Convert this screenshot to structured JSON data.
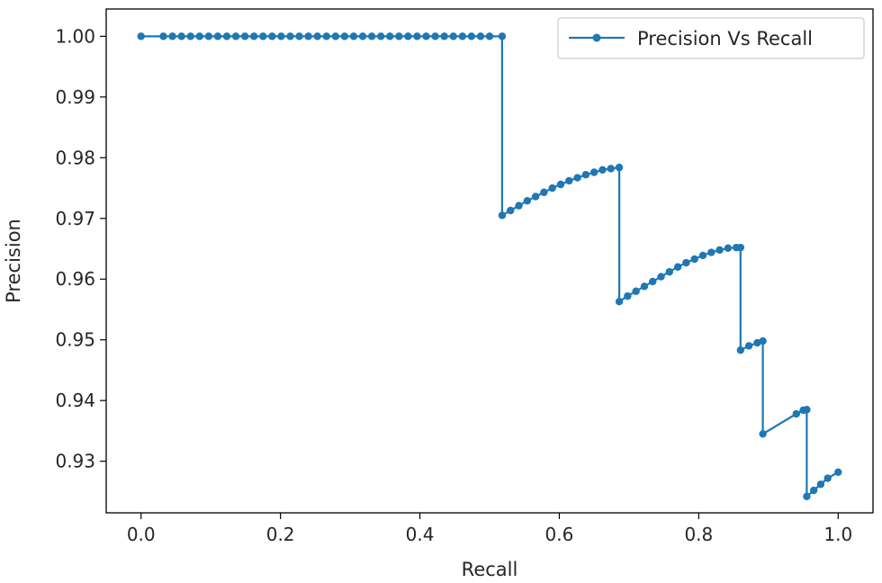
{
  "chart_data": {
    "type": "line",
    "title": "",
    "xlabel": "Recall",
    "ylabel": "Precision",
    "xlim": [
      -0.05,
      1.05
    ],
    "ylim": [
      0.9215,
      1.0045
    ],
    "xticks": [
      0.0,
      0.2,
      0.4,
      0.6,
      0.8,
      1.0
    ],
    "xtick_labels": [
      "0.0",
      "0.2",
      "0.4",
      "0.6",
      "0.8",
      "1.0"
    ],
    "yticks": [
      0.93,
      0.94,
      0.95,
      0.96,
      0.97,
      0.98,
      0.99,
      1.0
    ],
    "ytick_labels": [
      "0.93",
      "0.94",
      "0.95",
      "0.96",
      "0.97",
      "0.98",
      "0.99",
      "1.00"
    ],
    "grid": false,
    "legend_position": "top-right",
    "series": [
      {
        "name": "Precision Vs Recall",
        "color": "#1f77b4",
        "marker": "dot",
        "x": [
          0.0,
          0.032,
          0.045,
          0.058,
          0.071,
          0.084,
          0.097,
          0.11,
          0.123,
          0.136,
          0.149,
          0.162,
          0.175,
          0.188,
          0.201,
          0.214,
          0.227,
          0.24,
          0.253,
          0.266,
          0.279,
          0.292,
          0.305,
          0.318,
          0.331,
          0.344,
          0.357,
          0.37,
          0.383,
          0.396,
          0.409,
          0.422,
          0.435,
          0.448,
          0.461,
          0.474,
          0.487,
          0.5,
          0.518,
          0.518,
          0.53,
          0.542,
          0.554,
          0.566,
          0.578,
          0.59,
          0.602,
          0.614,
          0.626,
          0.638,
          0.65,
          0.662,
          0.674,
          0.686,
          0.686,
          0.698,
          0.71,
          0.722,
          0.734,
          0.746,
          0.758,
          0.77,
          0.782,
          0.794,
          0.806,
          0.818,
          0.83,
          0.842,
          0.854,
          0.86,
          0.86,
          0.872,
          0.884,
          0.892,
          0.892,
          0.94,
          0.95,
          0.955,
          0.955,
          0.965,
          0.975,
          0.985,
          1.0
        ],
        "y": [
          1.0,
          1.0,
          1.0,
          1.0,
          1.0,
          1.0,
          1.0,
          1.0,
          1.0,
          1.0,
          1.0,
          1.0,
          1.0,
          1.0,
          1.0,
          1.0,
          1.0,
          1.0,
          1.0,
          1.0,
          1.0,
          1.0,
          1.0,
          1.0,
          1.0,
          1.0,
          1.0,
          1.0,
          1.0,
          1.0,
          1.0,
          1.0,
          1.0,
          1.0,
          1.0,
          1.0,
          1.0,
          1.0,
          1.0,
          0.9705,
          0.9713,
          0.9721,
          0.9729,
          0.9736,
          0.9743,
          0.975,
          0.9756,
          0.9762,
          0.9767,
          0.9772,
          0.9776,
          0.978,
          0.9782,
          0.9784,
          0.9563,
          0.9572,
          0.958,
          0.9588,
          0.9596,
          0.9604,
          0.9612,
          0.962,
          0.9627,
          0.9633,
          0.9639,
          0.9644,
          0.9648,
          0.9651,
          0.9652,
          0.9652,
          0.9483,
          0.949,
          0.9495,
          0.9498,
          0.9345,
          0.9378,
          0.9384,
          0.9385,
          0.9242,
          0.9252,
          0.9262,
          0.9272,
          0.9282
        ]
      }
    ]
  }
}
